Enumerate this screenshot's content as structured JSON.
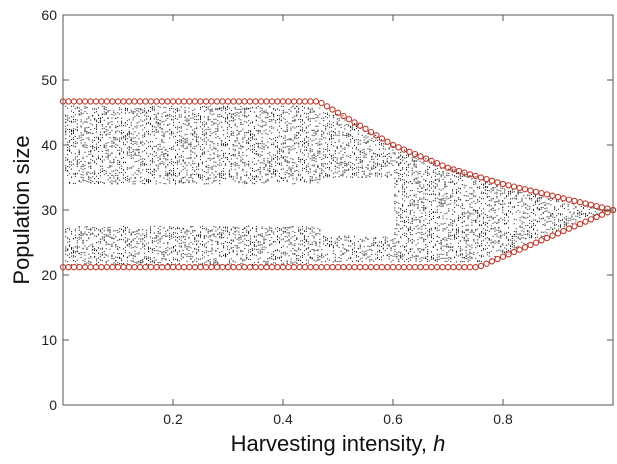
{
  "chart_data": {
    "type": "scatter",
    "xlabel": "Harvesting intensity, ",
    "xlabel_variable": "h",
    "ylabel": "Population size",
    "xlim": [
      0.0,
      1.0
    ],
    "ylim": [
      0,
      60
    ],
    "x_ticks": [
      0.2,
      0.4,
      0.6,
      0.8
    ],
    "x_tick_labels": [
      "0.2",
      "0.4",
      "0.6",
      "0.8"
    ],
    "y_ticks": [
      0,
      10,
      20,
      30,
      40,
      50,
      60
    ],
    "y_tick_labels": [
      "0",
      "10",
      "20",
      "30",
      "40",
      "50",
      "60"
    ],
    "grid": false,
    "colors": {
      "cloud": "#111111",
      "boundary": "#c0392b"
    },
    "series": [
      {
        "role": "bifurcation-cloud",
        "marker": "dot",
        "bands": [
          {
            "x": [
              0.0,
              0.47
            ],
            "y_ranges": [
              [
                34,
                46
              ],
              [
                21.5,
                27.5
              ]
            ]
          },
          {
            "x": [
              0.47,
              0.6
            ],
            "y_ranges": [
              [
                35,
                45
              ],
              [
                22,
                26
              ]
            ]
          },
          {
            "x": [
              0.6,
              0.77
            ],
            "y_ranges": [
              [
                22,
                41
              ]
            ]
          },
          {
            "x": [
              0.77,
              1.0
            ],
            "y_ranges": [
              [
                22,
                35
              ]
            ]
          }
        ]
      },
      {
        "role": "upper-boundary",
        "marker": "open-circle",
        "points": [
          [
            0.0,
            46.7
          ],
          [
            0.465,
            46.7
          ],
          [
            0.6,
            40.0
          ],
          [
            0.7,
            36.5
          ],
          [
            0.8,
            34.0
          ],
          [
            0.9,
            32.0
          ],
          [
            1.0,
            30.0
          ]
        ]
      },
      {
        "role": "lower-boundary",
        "marker": "open-circle",
        "points": [
          [
            0.0,
            21.2
          ],
          [
            0.755,
            21.2
          ],
          [
            1.0,
            30.0
          ]
        ]
      }
    ]
  }
}
